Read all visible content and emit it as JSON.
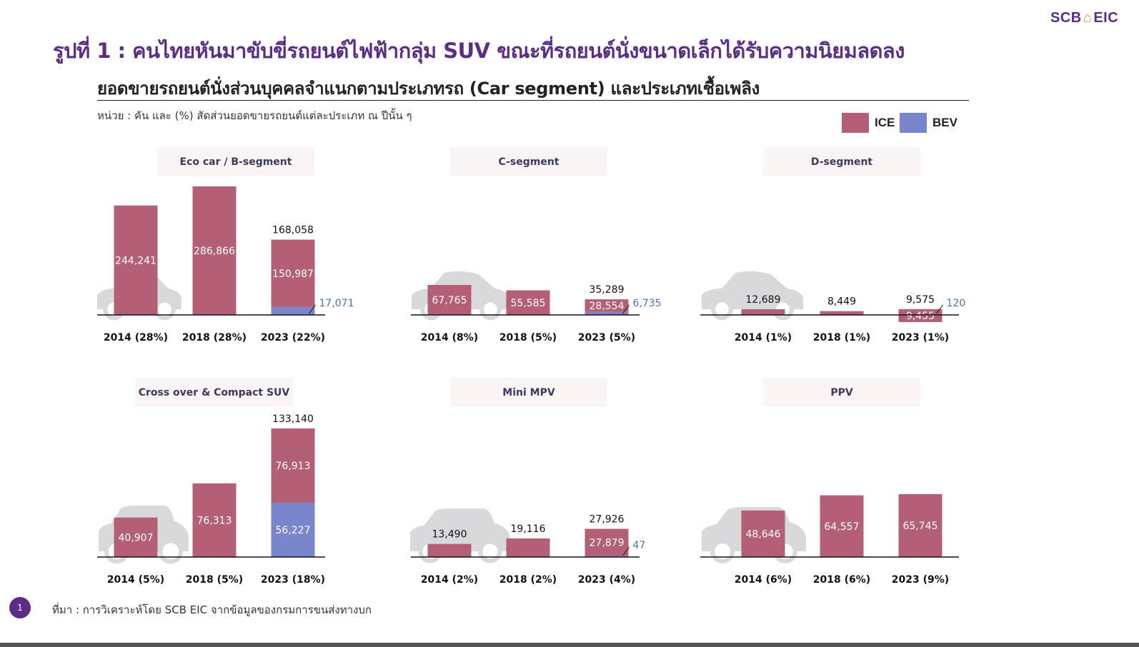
{
  "header": {
    "logo_text": "SCB",
    "logo_suffix": "EIC",
    "title": "รูปที่ 1 : คนไทยหันมาขับขี่รถยนต์ไฟฟ้ากลุ่ม SUV ขณะที่รถยนต์นั่งขนาดเล็กได้รับความนิยมลดลง",
    "subtitle": "ยอดขายรถยนต์นั่งส่วนบุคคลจำแนกตามประเภทรถ (Car segment) และประเภทเชื้อเพลิง",
    "unit_note": "หน่วย : คัน และ (%) สัดส่วนยอดขายรถยนต์แต่ละประเภท ณ ปีนั้น ๆ"
  },
  "legend": [
    {
      "label": "ICE",
      "color": "#b36077"
    },
    {
      "label": "BEV",
      "color": "#7986cb"
    }
  ],
  "colors": {
    "ice": "#b36077",
    "bev": "#7986cb",
    "label_bg": "#fbf4f5",
    "silhouette": "#d9d9dc",
    "brand": "#5b2d86"
  },
  "footer": {
    "page_number": "1",
    "source": "ที่มา : การวิเคราะห์โดย SCB EIC จากข้อมูลของกรมการขนส่งทางบก"
  },
  "chart_data": [
    {
      "type": "bar",
      "stacked": true,
      "segment": "Eco car / B-segment",
      "categories": [
        "2014 (28%)",
        "2018 (28%)",
        "2023 (22%)"
      ],
      "series": [
        {
          "name": "ICE",
          "values": [
            244241,
            286866,
            150987
          ],
          "labels": [
            "244,241",
            "286,866",
            "150,987"
          ]
        },
        {
          "name": "BEV",
          "values": [
            0,
            0,
            17071
          ],
          "labels": [
            "",
            "",
            "17,071"
          ]
        }
      ],
      "totals": [
        "",
        "",
        "168,058"
      ]
    },
    {
      "type": "bar",
      "stacked": true,
      "segment": "C-segment",
      "categories": [
        "2014 (8%)",
        "2018 (5%)",
        "2023 (5%)"
      ],
      "series": [
        {
          "name": "ICE",
          "values": [
            67765,
            55585,
            28554
          ],
          "labels": [
            "67,765",
            "55,585",
            "28,554"
          ]
        },
        {
          "name": "BEV",
          "values": [
            0,
            0,
            6735
          ],
          "labels": [
            "",
            "",
            "6,735"
          ]
        }
      ],
      "totals": [
        "",
        "",
        "35,289"
      ]
    },
    {
      "type": "bar",
      "stacked": true,
      "segment": "D-segment",
      "categories": [
        "2014 (1%)",
        "2018 (1%)",
        "2023 (1%)"
      ],
      "series": [
        {
          "name": "ICE",
          "values": [
            12689,
            8449,
            9455
          ],
          "labels": [
            "",
            "",
            "9,455"
          ]
        },
        {
          "name": "BEV",
          "values": [
            0,
            0,
            120
          ],
          "labels": [
            "",
            "",
            "120"
          ]
        }
      ],
      "totals": [
        "12,689",
        "8,449",
        "9,575"
      ]
    },
    {
      "type": "bar",
      "stacked": true,
      "segment": "Cross over & Compact SUV",
      "categories": [
        "2014 (5%)",
        "2018  (5%)",
        "2023  (18%)"
      ],
      "series": [
        {
          "name": "ICE",
          "values": [
            40907,
            76313,
            76913
          ],
          "labels": [
            "40,907",
            "76,313",
            "76,913"
          ]
        },
        {
          "name": "BEV",
          "values": [
            0,
            0,
            56227
          ],
          "labels": [
            "",
            "",
            "56,227"
          ]
        }
      ],
      "totals": [
        "",
        "",
        "133,140"
      ]
    },
    {
      "type": "bar",
      "stacked": true,
      "segment": "Mini MPV",
      "categories": [
        "2014  (2%)",
        "2018 (2%)",
        "2023 (4%)"
      ],
      "series": [
        {
          "name": "ICE",
          "values": [
            13490,
            19116,
            27879
          ],
          "labels": [
            "",
            "",
            "27,879"
          ]
        },
        {
          "name": "BEV",
          "values": [
            0,
            0,
            47
          ],
          "labels": [
            "",
            "",
            "47"
          ]
        }
      ],
      "totals": [
        "13,490",
        "19,116",
        "27,926"
      ]
    },
    {
      "type": "bar",
      "stacked": true,
      "segment": "PPV",
      "categories": [
        "2014 (6%)",
        "2018 (6%)",
        "2023 (9%)"
      ],
      "series": [
        {
          "name": "ICE",
          "values": [
            48646,
            64557,
            65745
          ],
          "labels": [
            "48,646",
            "64,557",
            "65,745"
          ]
        },
        {
          "name": "BEV",
          "values": [
            0,
            0,
            0
          ],
          "labels": [
            "",
            "",
            ""
          ]
        }
      ],
      "totals": [
        "",
        "",
        ""
      ]
    }
  ]
}
